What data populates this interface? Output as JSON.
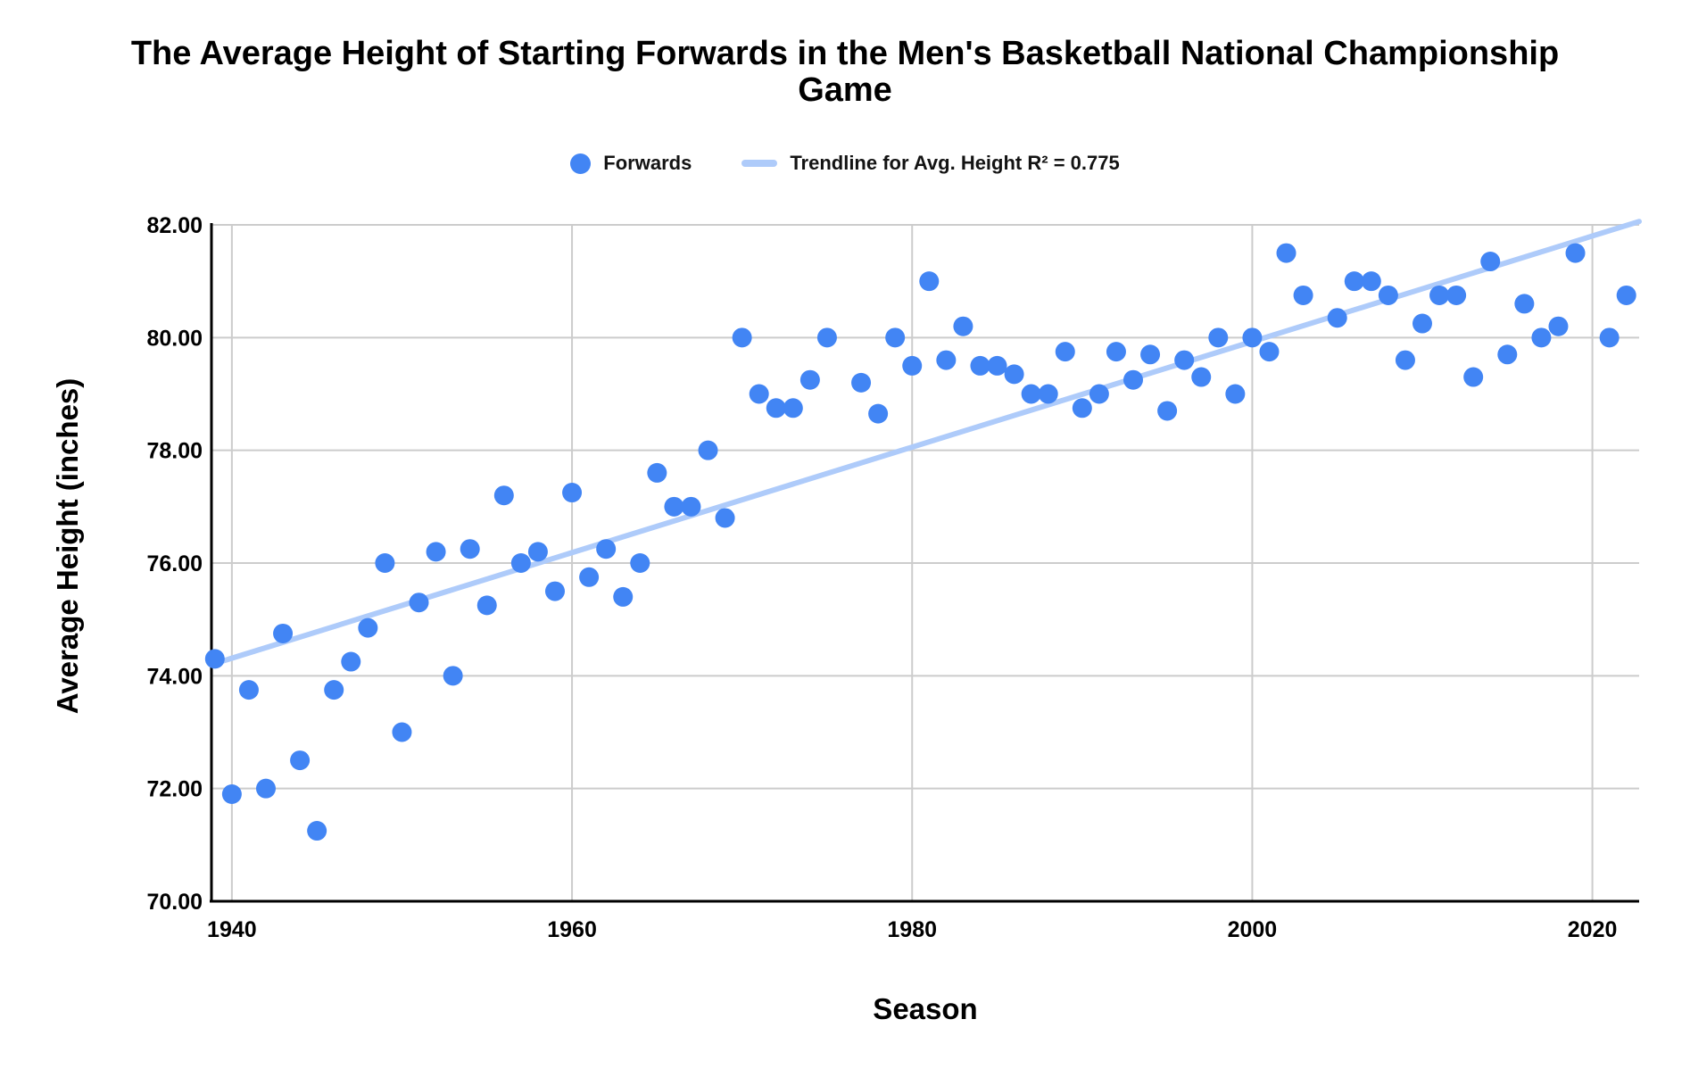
{
  "title": "The Average Height of Starting Forwards in the Men's Basketball National Championship Game",
  "legend": {
    "series_label": "Forwards",
    "trendline_label": "Trendline for Avg. Height R² = 0.775"
  },
  "axes": {
    "x_title": "Season",
    "y_title": "Average Height (inches)",
    "x_ticks": [
      {
        "value": 1940,
        "label": "1940"
      },
      {
        "value": 1960,
        "label": "1960"
      },
      {
        "value": 1980,
        "label": "1980"
      },
      {
        "value": 2000,
        "label": "2000"
      },
      {
        "value": 2020,
        "label": "2020"
      }
    ],
    "y_ticks": [
      {
        "value": 70,
        "label": "70.00"
      },
      {
        "value": 72,
        "label": "72.00"
      },
      {
        "value": 74,
        "label": "74.00"
      },
      {
        "value": 76,
        "label": "76.00"
      },
      {
        "value": 78,
        "label": "78.00"
      },
      {
        "value": 80,
        "label": "80.00"
      },
      {
        "value": 82,
        "label": "82.00"
      }
    ]
  },
  "colors": {
    "point": "#4285f4",
    "trendline": "#aecbfa",
    "gridline": "#cccccc",
    "axis_line": "#000000",
    "text": "#000000"
  },
  "chart_data": {
    "type": "scatter",
    "title": "The Average Height of Starting Forwards in the Men's Basketball National Championship Game",
    "xlabel": "Season",
    "ylabel": "Average Height (inches)",
    "xlim": [
      1938.8,
      2022.75
    ],
    "ylim": [
      70,
      82
    ],
    "grid": true,
    "legend_position": "top",
    "series": [
      {
        "name": "Forwards",
        "points": [
          [
            1939,
            74.3
          ],
          [
            1940,
            71.9
          ],
          [
            1941,
            73.75
          ],
          [
            1942,
            72.0
          ],
          [
            1943,
            74.75
          ],
          [
            1944,
            72.5
          ],
          [
            1945,
            71.25
          ],
          [
            1946,
            73.75
          ],
          [
            1947,
            74.25
          ],
          [
            1948,
            74.85
          ],
          [
            1949,
            76.0
          ],
          [
            1950,
            73.0
          ],
          [
            1951,
            75.3
          ],
          [
            1952,
            76.2
          ],
          [
            1953,
            74.0
          ],
          [
            1954,
            76.25
          ],
          [
            1955,
            75.25
          ],
          [
            1956,
            77.2
          ],
          [
            1957,
            76.0
          ],
          [
            1958,
            76.2
          ],
          [
            1959,
            75.5
          ],
          [
            1960,
            77.25
          ],
          [
            1961,
            75.75
          ],
          [
            1962,
            76.25
          ],
          [
            1963,
            75.4
          ],
          [
            1964,
            76.0
          ],
          [
            1965,
            77.6
          ],
          [
            1966,
            77.0
          ],
          [
            1967,
            77.0
          ],
          [
            1968,
            78.0
          ],
          [
            1969,
            76.8
          ],
          [
            1970,
            80.0
          ],
          [
            1971,
            79.0
          ],
          [
            1972,
            78.75
          ],
          [
            1973,
            78.75
          ],
          [
            1974,
            79.25
          ],
          [
            1975,
            80.0
          ],
          [
            1977,
            79.2
          ],
          [
            1978,
            78.65
          ],
          [
            1979,
            80.0
          ],
          [
            1980,
            79.5
          ],
          [
            1981,
            81.0
          ],
          [
            1982,
            79.6
          ],
          [
            1983,
            80.2
          ],
          [
            1984,
            79.5
          ],
          [
            1985,
            79.5
          ],
          [
            1986,
            79.35
          ],
          [
            1987,
            79.0
          ],
          [
            1988,
            79.0
          ],
          [
            1989,
            79.75
          ],
          [
            1990,
            78.75
          ],
          [
            1991,
            79.0
          ],
          [
            1992,
            79.75
          ],
          [
            1993,
            79.25
          ],
          [
            1994,
            79.7
          ],
          [
            1995,
            78.7
          ],
          [
            1996,
            79.6
          ],
          [
            1997,
            79.3
          ],
          [
            1998,
            80.0
          ],
          [
            1999,
            79.0
          ],
          [
            2000,
            80.0
          ],
          [
            2001,
            79.75
          ],
          [
            2002,
            81.5
          ],
          [
            2003,
            80.75
          ],
          [
            2005,
            80.35
          ],
          [
            2006,
            81.0
          ],
          [
            2007,
            81.0
          ],
          [
            2008,
            80.75
          ],
          [
            2009,
            79.6
          ],
          [
            2010,
            80.25
          ],
          [
            2011,
            80.75
          ],
          [
            2012,
            80.75
          ],
          [
            2013,
            79.3
          ],
          [
            2014,
            81.35
          ],
          [
            2015,
            79.7
          ],
          [
            2016,
            80.6
          ],
          [
            2017,
            80.0
          ],
          [
            2018,
            80.2
          ],
          [
            2019,
            81.5
          ],
          [
            2021,
            80.0
          ],
          [
            2022,
            80.75
          ]
        ]
      }
    ],
    "missing_seasons": [
      1976,
      2004,
      2020
    ],
    "trendline": {
      "name": "Trendline for Avg. Height",
      "r_squared": 0.775,
      "start": [
        1938.8,
        74.2
      ],
      "end": [
        2022.75,
        82.06
      ]
    }
  }
}
